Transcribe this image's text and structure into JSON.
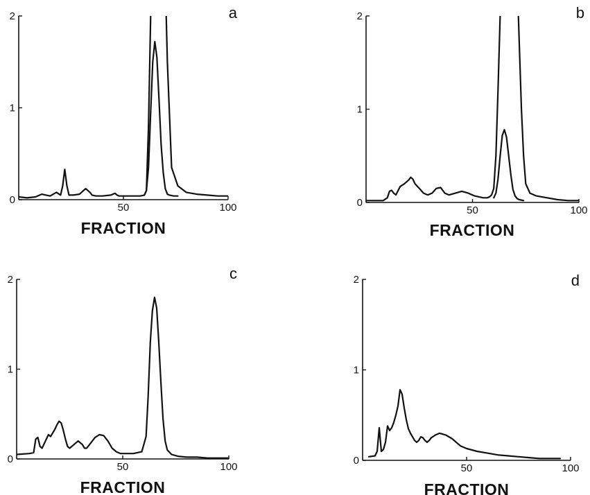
{
  "chart_data": [
    {
      "panel": "a",
      "type": "line",
      "xlabel": "FRACTION",
      "xlim": [
        0,
        100
      ],
      "ylim": [
        0,
        2
      ],
      "xticks": [
        50,
        100
      ],
      "yticks": [
        0,
        1,
        2
      ],
      "series": [
        {
          "x": [
            0,
            4,
            8,
            11,
            13,
            15,
            18,
            20,
            21,
            22,
            23,
            24,
            26,
            29,
            32,
            34,
            35,
            37,
            40,
            44,
            46,
            47,
            48,
            51,
            55,
            58,
            60,
            61,
            62,
            63,
            64,
            65,
            66,
            67,
            68,
            69,
            70,
            71,
            73,
            76,
            80,
            85,
            90,
            95,
            100
          ],
          "y": [
            0.03,
            0.02,
            0.03,
            0.06,
            0.05,
            0.04,
            0.08,
            0.05,
            0.15,
            0.33,
            0.15,
            0.05,
            0.05,
            0.06,
            0.12,
            0.08,
            0.05,
            0.04,
            0.04,
            0.05,
            0.07,
            0.05,
            0.04,
            0.04,
            0.04,
            0.04,
            0.05,
            0.1,
            0.8,
            2.0,
            2.4,
            2.4,
            2.4,
            2.4,
            2.4,
            2.4,
            2.4,
            1.5,
            0.35,
            0.15,
            0.08,
            0.06,
            0.05,
            0.04,
            0.04
          ]
        },
        {
          "x": [
            60,
            61,
            62,
            63,
            64,
            65,
            66,
            67,
            68,
            69,
            70,
            71,
            72,
            74,
            76
          ],
          "y": [
            0.05,
            0.1,
            0.35,
            0.95,
            1.5,
            1.72,
            1.55,
            1.1,
            0.6,
            0.3,
            0.12,
            0.06,
            0.05,
            0.04,
            0.04
          ]
        }
      ]
    },
    {
      "panel": "b",
      "type": "line",
      "xlabel": "FRACTION",
      "xlim": [
        0,
        100
      ],
      "ylim": [
        0,
        2
      ],
      "xticks": [
        50,
        100
      ],
      "yticks": [
        0,
        1,
        2
      ],
      "series": [
        {
          "x": [
            0,
            5,
            8,
            10,
            11,
            12,
            13,
            14,
            16,
            18,
            20,
            21,
            22,
            23,
            25,
            27,
            29,
            31,
            33,
            35,
            37,
            39,
            42,
            45,
            48,
            51,
            55,
            57,
            58,
            59,
            60,
            61,
            62,
            63,
            64,
            65,
            66,
            67,
            68,
            69,
            70,
            71,
            72,
            73,
            74,
            75,
            77,
            80,
            85,
            90,
            95,
            100
          ],
          "y": [
            0.02,
            0.02,
            0.02,
            0.05,
            0.12,
            0.13,
            0.1,
            0.08,
            0.17,
            0.2,
            0.24,
            0.27,
            0.25,
            0.2,
            0.15,
            0.1,
            0.08,
            0.1,
            0.15,
            0.16,
            0.1,
            0.08,
            0.1,
            0.12,
            0.1,
            0.07,
            0.05,
            0.05,
            0.06,
            0.08,
            0.15,
            0.5,
            1.2,
            2.0,
            2.4,
            2.4,
            2.4,
            2.4,
            2.4,
            2.4,
            2.4,
            2.4,
            1.7,
            1.0,
            0.5,
            0.2,
            0.1,
            0.07,
            0.05,
            0.03,
            0.02,
            0.02
          ]
        },
        {
          "x": [
            60,
            61,
            62,
            63,
            64,
            65,
            66,
            67,
            68,
            69,
            70,
            71,
            72,
            74
          ],
          "y": [
            0.05,
            0.1,
            0.25,
            0.5,
            0.72,
            0.78,
            0.7,
            0.5,
            0.3,
            0.14,
            0.07,
            0.04,
            0.03,
            0.02
          ]
        }
      ]
    },
    {
      "panel": "c",
      "type": "line",
      "xlabel": "FRACTION",
      "xlim": [
        0,
        100
      ],
      "ylim": [
        0,
        2
      ],
      "xticks": [
        50,
        100
      ],
      "yticks": [
        0,
        1,
        2
      ],
      "series": [
        {
          "x": [
            0,
            6,
            8,
            9,
            10,
            11,
            12,
            14,
            15,
            16,
            18,
            19,
            20,
            21,
            22,
            23,
            24,
            25,
            27,
            29,
            31,
            32,
            33,
            35,
            37,
            39,
            41,
            43,
            45,
            47,
            49,
            51,
            55,
            59,
            61,
            62,
            63,
            64,
            65,
            66,
            67,
            68,
            69,
            70,
            71,
            73,
            76,
            80,
            85,
            90,
            95,
            100
          ],
          "y": [
            0.05,
            0.06,
            0.07,
            0.22,
            0.24,
            0.14,
            0.12,
            0.22,
            0.27,
            0.25,
            0.33,
            0.38,
            0.42,
            0.4,
            0.32,
            0.22,
            0.14,
            0.12,
            0.16,
            0.2,
            0.16,
            0.12,
            0.12,
            0.18,
            0.24,
            0.27,
            0.26,
            0.2,
            0.12,
            0.08,
            0.06,
            0.06,
            0.06,
            0.08,
            0.25,
            0.7,
            1.3,
            1.65,
            1.8,
            1.68,
            1.3,
            0.85,
            0.45,
            0.2,
            0.1,
            0.05,
            0.03,
            0.02,
            0.02,
            0.01,
            0.01,
            0.01
          ]
        }
      ]
    },
    {
      "panel": "d",
      "type": "line",
      "xlabel": "FRACTION",
      "xlim": [
        0,
        100
      ],
      "ylim": [
        0,
        2
      ],
      "xticks": [
        50,
        100
      ],
      "yticks": [
        0,
        1,
        2
      ],
      "series": [
        {
          "x": [
            3,
            6,
            7,
            8,
            9,
            10,
            11,
            12,
            13,
            14,
            15,
            16,
            17,
            18,
            19,
            20,
            21,
            22,
            23,
            24,
            25,
            26,
            27,
            28,
            29,
            30,
            31,
            32,
            33,
            35,
            37,
            40,
            43,
            45,
            47,
            50,
            55,
            60,
            65,
            70,
            75,
            80,
            85,
            90,
            95
          ],
          "y": [
            0.04,
            0.05,
            0.1,
            0.36,
            0.1,
            0.12,
            0.2,
            0.38,
            0.33,
            0.36,
            0.42,
            0.5,
            0.6,
            0.78,
            0.73,
            0.58,
            0.45,
            0.35,
            0.3,
            0.26,
            0.22,
            0.2,
            0.22,
            0.26,
            0.25,
            0.22,
            0.2,
            0.22,
            0.25,
            0.28,
            0.3,
            0.28,
            0.24,
            0.2,
            0.16,
            0.13,
            0.1,
            0.08,
            0.06,
            0.05,
            0.04,
            0.03,
            0.02,
            0.02,
            0.02
          ]
        }
      ]
    }
  ]
}
